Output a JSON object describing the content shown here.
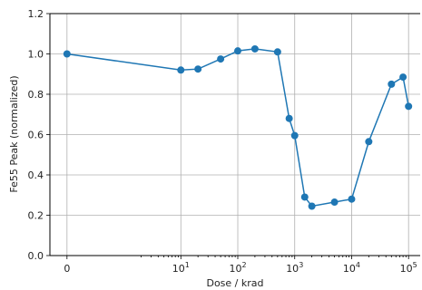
{
  "chart_data": {
    "type": "line",
    "title": "",
    "xlabel": "Dose / krad",
    "ylabel": "Fe55 Peak (normalized)",
    "x_scale": "symlog",
    "xlim": [
      -0.3,
      160000
    ],
    "ylim": [
      0.0,
      1.2
    ],
    "grid": true,
    "x_ticks": [
      {
        "value": 0,
        "base": "0",
        "exp": ""
      },
      {
        "value": 10,
        "base": "10",
        "exp": "1"
      },
      {
        "value": 100,
        "base": "10",
        "exp": "2"
      },
      {
        "value": 1000,
        "base": "10",
        "exp": "3"
      },
      {
        "value": 10000,
        "base": "10",
        "exp": "4"
      },
      {
        "value": 100000,
        "base": "10",
        "exp": "5"
      }
    ],
    "y_ticks": [
      "0.0",
      "0.2",
      "0.4",
      "0.6",
      "0.8",
      "1.0",
      "1.2"
    ],
    "series": [
      {
        "color": "#1f77b4",
        "x": [
          0,
          10,
          20,
          50,
          100,
          200,
          500,
          800,
          1000,
          1500,
          2000,
          5000,
          10000,
          20000,
          50000,
          80000,
          100000
        ],
        "y": [
          1.0,
          0.92,
          0.925,
          0.975,
          1.015,
          1.025,
          1.01,
          0.68,
          0.595,
          0.29,
          0.245,
          0.265,
          0.28,
          0.565,
          0.85,
          0.885,
          0.74
        ]
      }
    ]
  }
}
